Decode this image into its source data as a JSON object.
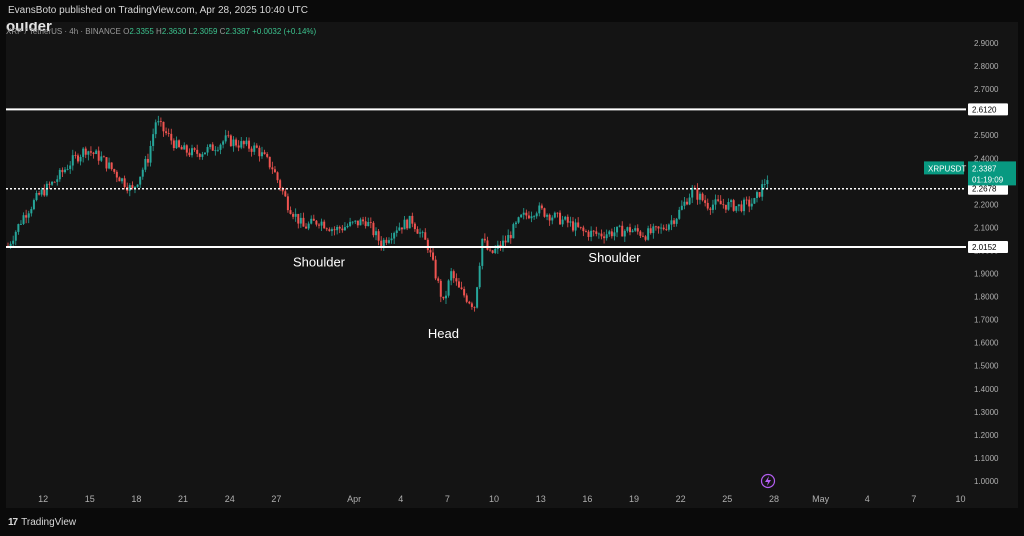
{
  "header": {
    "published_text": "EvansBoto published on TradingView.com, Apr 28, 2025 10:40 UTC"
  },
  "chart_header": {
    "title": "oulder",
    "symbol_text": "XRP / TetherUS · 4h · BINANCE",
    "ohlc": {
      "o_label": "O",
      "o": "2.3355",
      "h_label": "H",
      "h": "2.3630",
      "l_label": "L",
      "l": "2.3059",
      "c_label": "C",
      "c": "2.3387",
      "change": "+0.0032 (+0.14%)"
    }
  },
  "footer": {
    "brand": "TradingView"
  },
  "colors": {
    "up": "#26a69a",
    "down": "#ef5350",
    "background": "#141414",
    "level_line": "#ffffff",
    "price_tag": "#089981"
  },
  "chart_data": {
    "type": "candlestick",
    "title": "",
    "xlabel": "",
    "ylabel": "",
    "ylim": [
      0.96,
      3.0
    ],
    "y_ticks": [
      "2.9000",
      "2.8000",
      "2.7000",
      "2.6000",
      "2.5000",
      "2.4000",
      "2.3000",
      "2.2000",
      "2.1000",
      "2.0000",
      "1.9000",
      "1.8000",
      "1.7000",
      "1.6000",
      "1.5000",
      "1.4000",
      "1.3000",
      "1.2000",
      "1.1000",
      "1.0000"
    ],
    "x_ticks": [
      "12",
      "15",
      "18",
      "21",
      "24",
      "27",
      "Apr",
      "4",
      "7",
      "10",
      "13",
      "16",
      "19",
      "22",
      "25",
      "28",
      "May",
      "4",
      "7",
      "10"
    ],
    "horizontal_levels": [
      {
        "value": 2.612,
        "label": "2.6120",
        "style": "solid"
      },
      {
        "value": 2.2678,
        "label": "2.2678",
        "style": "dotted"
      },
      {
        "value": 2.0152,
        "label": "2.0152",
        "style": "solid"
      }
    ],
    "last_price": {
      "symbol": "XRPUSDT",
      "value": "2.3387",
      "countdown": "01:19:09"
    },
    "annotations": [
      {
        "text": "Shoulder",
        "x": "Mar 30",
        "y": 1.93
      },
      {
        "text": "Head",
        "x": "Apr 7",
        "y": 1.62
      },
      {
        "text": "Shoulder",
        "x": "Apr 18",
        "y": 1.95
      }
    ],
    "price_path": [
      [
        "Mar 10",
        2.02
      ],
      [
        "Mar 11",
        2.15
      ],
      [
        "Mar 12",
        2.24
      ],
      [
        "Mar 13",
        2.3
      ],
      [
        "Mar 14",
        2.38
      ],
      [
        "Mar 15",
        2.44
      ],
      [
        "Mar 16",
        2.4
      ],
      [
        "Mar 17",
        2.33
      ],
      [
        "Mar 18",
        2.26
      ],
      [
        "Mar 19",
        2.4
      ],
      [
        "Mar 19.5",
        2.56
      ],
      [
        "Mar 20",
        2.52
      ],
      [
        "Mar 21",
        2.44
      ],
      [
        "Mar 22",
        2.42
      ],
      [
        "Mar 23",
        2.44
      ],
      [
        "Mar 24",
        2.48
      ],
      [
        "Mar 25",
        2.46
      ],
      [
        "Mar 26",
        2.44
      ],
      [
        "Mar 27",
        2.36
      ],
      [
        "Mar 28",
        2.2
      ],
      [
        "Mar 29",
        2.1
      ],
      [
        "Mar 30",
        2.13
      ],
      [
        "Mar 31",
        2.09
      ],
      [
        "Apr 1",
        2.11
      ],
      [
        "Apr 2",
        2.13
      ],
      [
        "Apr 3",
        2.03
      ],
      [
        "Apr 4",
        2.1
      ],
      [
        "Apr 5",
        2.13
      ],
      [
        "Apr 6",
        2.02
      ],
      [
        "Apr 7",
        1.77
      ],
      [
        "Apr 7.5",
        1.9
      ],
      [
        "Apr 8",
        1.83
      ],
      [
        "Apr 9",
        1.76
      ],
      [
        "Apr 9.5",
        2.05
      ],
      [
        "Apr 10",
        1.98
      ],
      [
        "Apr 11",
        2.04
      ],
      [
        "Apr 12",
        2.14
      ],
      [
        "Apr 13",
        2.18
      ],
      [
        "Apr 14",
        2.15
      ],
      [
        "Apr 15",
        2.12
      ],
      [
        "Apr 16",
        2.08
      ],
      [
        "Apr 17",
        2.07
      ],
      [
        "Apr 18",
        2.08
      ],
      [
        "Apr 19",
        2.09
      ],
      [
        "Apr 20",
        2.07
      ],
      [
        "Apr 21",
        2.09
      ],
      [
        "Apr 22",
        2.15
      ],
      [
        "Apr 23",
        2.26
      ],
      [
        "Apr 24",
        2.2
      ],
      [
        "Apr 25",
        2.2
      ],
      [
        "Apr 26",
        2.19
      ],
      [
        "Apr 27",
        2.21
      ],
      [
        "Apr 28",
        2.3387
      ]
    ]
  }
}
